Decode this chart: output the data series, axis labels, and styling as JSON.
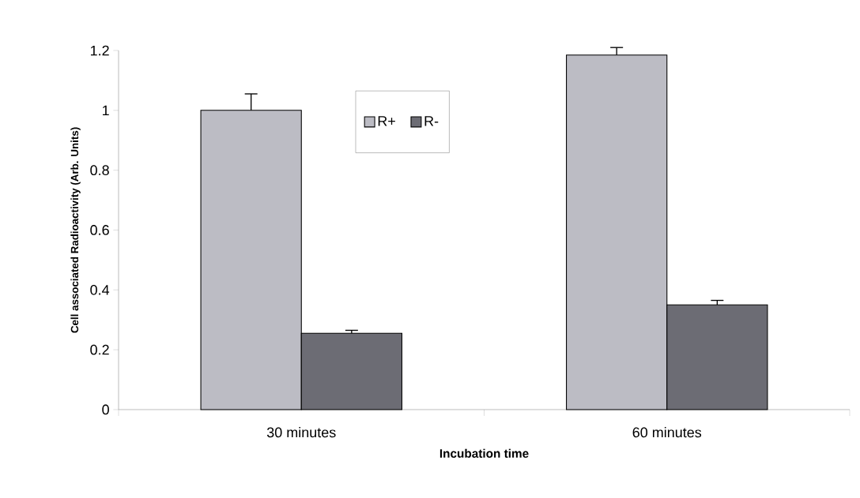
{
  "chart_data": {
    "type": "bar",
    "xlabel": "Incubation time",
    "ylabel": "Cell associated Radioactivity (Arb. Units)",
    "categories": [
      "30 minutes",
      "60 minutes"
    ],
    "series": [
      {
        "name": "R+",
        "color": "#bcbcc4",
        "values": [
          1.0,
          1.185
        ],
        "errors": [
          0.055,
          0.025
        ]
      },
      {
        "name": "R-",
        "color": "#6c6c74",
        "values": [
          0.255,
          0.35
        ],
        "errors": [
          0.01,
          0.015
        ]
      }
    ],
    "ylim": [
      0,
      1.2
    ],
    "yticks": [
      0,
      0.2,
      0.4,
      0.6,
      0.8,
      1,
      1.2
    ],
    "grid": false,
    "legend": "top"
  }
}
